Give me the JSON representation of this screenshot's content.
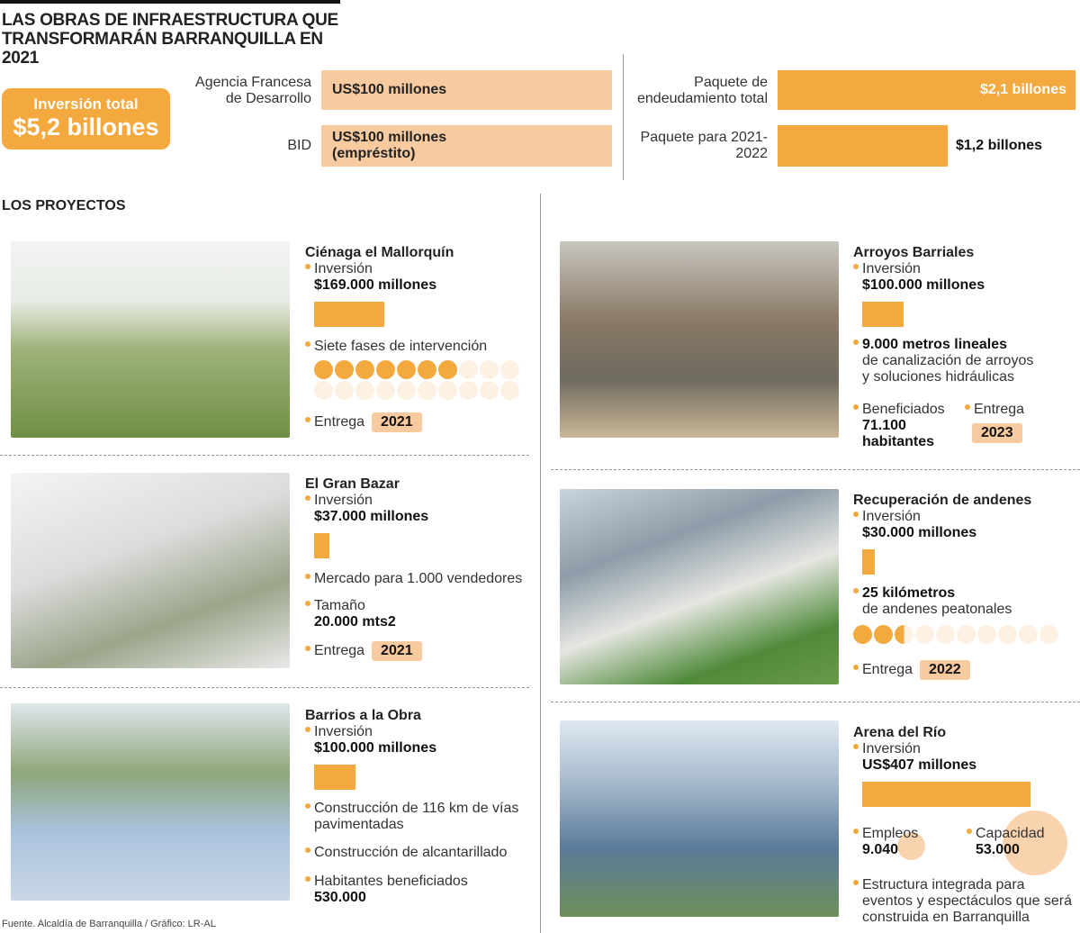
{
  "title": "LAS OBRAS DE INFRAESTRUCTURA QUE TRANSFORMARÁN BARRANQUILLA EN 2021",
  "total": {
    "label": "Inversión total",
    "value": "$5,2 billones"
  },
  "financing": [
    {
      "label": "Agencia Francesa de Desarrollo",
      "value": "US$100 millones"
    },
    {
      "label": "BID",
      "value": "US$100 millones (empréstito)"
    }
  ],
  "debt": [
    {
      "label": "Paquete de endeudamiento total",
      "value": "$2,1 billones",
      "amount": 2.1
    },
    {
      "label": "Paquete para 2021-2022",
      "value": "$1,2 billones",
      "amount": 1.2
    }
  ],
  "section_title": "LOS PROYECTOS",
  "colors": {
    "orange": "#f4a93e",
    "peach": "#f8caa0",
    "pale": "#fdf1e3"
  },
  "projects": {
    "cienaga": {
      "name": "Ciénaga el Mallorquín",
      "inv_label": "Inversión",
      "inv": "$169.000 millones",
      "inv_amount": 169000,
      "phases": "Siete fases de intervención",
      "phases_done": 7,
      "phases_total": 20,
      "entrega_label": "Entrega",
      "entrega": "2021"
    },
    "bazar": {
      "name": "El Gran Bazar",
      "inv_label": "Inversión",
      "inv": "$37.000 millones",
      "inv_amount": 37000,
      "mercado": "Mercado para 1.000 vendedores",
      "size_label": "Tamaño",
      "size": "20.000 mts2",
      "entrega_label": "Entrega",
      "entrega": "2021"
    },
    "barrios": {
      "name": "Barrios a la Obra",
      "inv_label": "Inversión",
      "inv": "$100.000 millones",
      "inv_amount": 100000,
      "vias": "Construcción de 116 km de vías pavimentadas",
      "alcant": "Construcción de alcantarillado",
      "hab_label": "Habitantes beneficiados",
      "hab": "530.000"
    },
    "arroyos": {
      "name": "Arroyos Barriales",
      "inv_label": "Inversión",
      "inv": "$100.000 millones",
      "inv_amount": 100000,
      "metros": "9.000 metros lineales",
      "metros_desc": "de canalización de arroyos y soluciones hidráulicas",
      "benef_label": "Beneficiados",
      "benef": "71.100 habitantes",
      "entrega_label": "Entrega",
      "entrega": "2023"
    },
    "andenes": {
      "name": "Recuperación de andenes",
      "inv_label": "Inversión",
      "inv": "$30.000 millones",
      "inv_amount": 30000,
      "km": "25 kilómetros",
      "km_desc": "de andenes peatonales",
      "km_done": 2.5,
      "km_total": 10,
      "entrega_label": "Entrega",
      "entrega": "2022"
    },
    "arena": {
      "name": "Arena del Río",
      "inv_label": "Inversión",
      "inv": "US$407 millones",
      "inv_amount": 407000,
      "empleos_label": "Empleos",
      "empleos": "9.040",
      "cap_label": "Capacidad",
      "cap": "53.000",
      "desc": "Estructura integrada para eventos y espectáculos que será construida en Barranquilla"
    }
  },
  "source": "Fuente. Alcaldía de Barranquilla / Gráfico: LR-AL"
}
